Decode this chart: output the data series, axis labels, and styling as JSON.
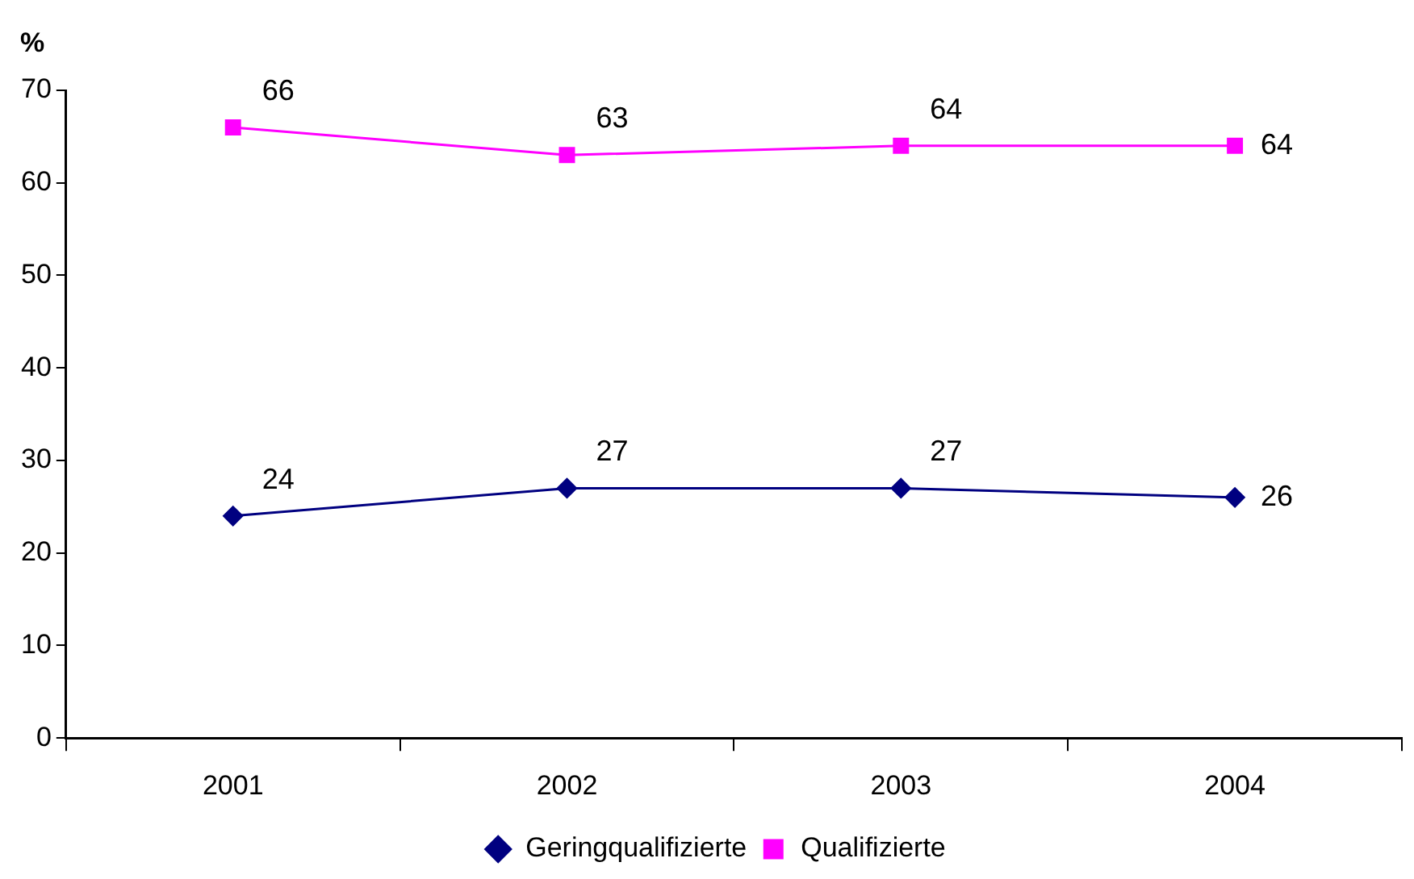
{
  "chart_data": {
    "type": "line",
    "ylabel": "%",
    "categories": [
      "2001",
      "2002",
      "2003",
      "2004"
    ],
    "series": [
      {
        "name": "Geringqualifizierte",
        "color": "#000080",
        "marker": "diamond",
        "values": [
          24,
          27,
          27,
          26
        ]
      },
      {
        "name": "Qualifizierte",
        "color": "#ff00ff",
        "marker": "square",
        "values": [
          66,
          63,
          64,
          64
        ]
      }
    ],
    "ylim": [
      0,
      70
    ],
    "yticks": [
      0,
      10,
      20,
      30,
      40,
      50,
      60,
      70
    ],
    "grid": false,
    "legend": "bottom",
    "data_labels": true
  }
}
